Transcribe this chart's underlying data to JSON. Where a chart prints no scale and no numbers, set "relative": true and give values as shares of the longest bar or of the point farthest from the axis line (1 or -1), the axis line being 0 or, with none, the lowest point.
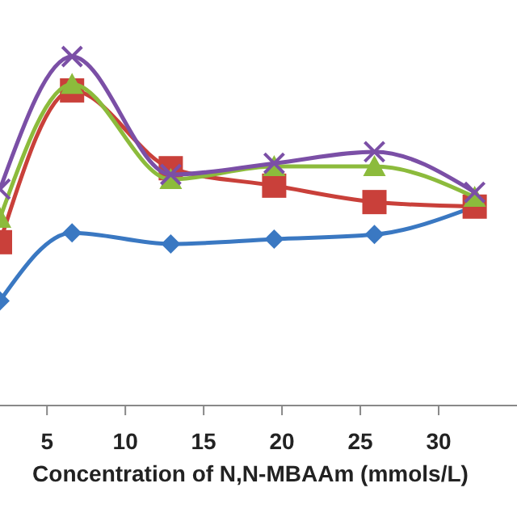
{
  "chart_data": {
    "type": "line",
    "relative": true,
    "xlabel": "Concentration of N,N-MBAAm (mmols/L)",
    "xlim": [
      2,
      35
    ],
    "xticks": [
      5,
      10,
      15,
      20,
      25,
      30
    ],
    "x": [
      2,
      6.6,
      12.9,
      19.5,
      25.9,
      32.3
    ],
    "grid": false,
    "line_style": "solid",
    "series": [
      {
        "color": "#3a78c2",
        "marker": "diamond",
        "values": [
          0.3,
          0.495,
          0.463,
          0.477,
          0.49,
          0.57
        ]
      },
      {
        "color": "#c9403a",
        "marker": "square",
        "values": [
          0.468,
          0.903,
          0.68,
          0.63,
          0.583,
          0.57
        ]
      },
      {
        "color": "#8cbb3c",
        "marker": "triangle",
        "values": [
          0.537,
          0.921,
          0.648,
          0.685,
          0.685,
          0.597
        ]
      },
      {
        "color": "#7b4fa6",
        "marker": "cross",
        "values": [
          0.62,
          1,
          0.662,
          0.694,
          0.727,
          0.611
        ]
      }
    ]
  }
}
